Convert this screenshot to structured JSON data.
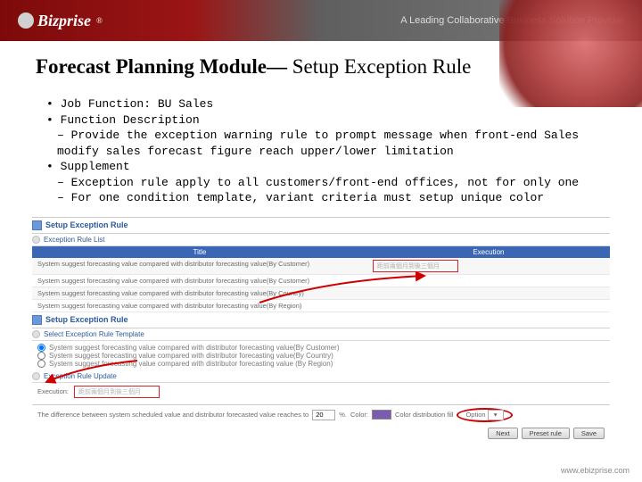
{
  "banner": {
    "logo_text": "Bizprise",
    "reg_mark": "®",
    "tagline": "A Leading Collaborative Business Solution Provider"
  },
  "title": {
    "bold": "Forecast Planning Module—",
    "rest": " Setup Exception Rule"
  },
  "bullets": {
    "b1": "Job Function: BU Sales",
    "b2": "Function Description",
    "b2_1": "Provide the exception warning rule to prompt message when front-end Sales modify sales forecast figure reach upper/lower limitation",
    "b3": "Supplement",
    "b3_1": "Exception rule apply to all customers/front-end offices, not for only one",
    "b3_2": "For one condition template, variant criteria must setup unique color"
  },
  "shot": {
    "hdr1": "Setup Exception Rule",
    "sub1": "Exception Rule List",
    "th_title": "Title",
    "th_exec": "Execution",
    "rows": [
      {
        "title": "System suggest forecasting value compared with distributor forecasting value(By Customer)",
        "exec": "距前兩個月到後三個月"
      },
      {
        "title": "System suggest forecasting value compared with distributor forecasting value(By Customer)",
        "exec": ""
      },
      {
        "title": "System suggest forecasting value compared with distributor forecasting value(By Country)",
        "exec": ""
      },
      {
        "title": "System suggest forecasting value compared with distributor forecasting value(By Region)",
        "exec": ""
      }
    ],
    "hdr2": "Setup Exception Rule",
    "sub2": "Select Exception Rule Template",
    "radios": [
      "System suggest forecasting value compared with distributor forecasting value(By Customer)",
      "System suggest forecasting value compared with distributor forecasting value(By Country)",
      "System suggest forecasting value compared with distributor forecasting value (By Region)"
    ],
    "sub3": "Exception Rule Update",
    "exec_label": "Execution:",
    "exec_value": "距前兩個月到後三個月",
    "diff_text": "The difference between system scheduled value and distributor forecasted value reaches to",
    "diff_value": "20",
    "pct": "%.",
    "color_label": "Color:",
    "color_hex": "#7b5ab2",
    "color_distribution": "Color distribution fill",
    "option_label": "Option",
    "option_select": "▾",
    "btn_next": "Next",
    "btn_preset": "Preset rule",
    "btn_save": "Save"
  },
  "footer": {
    "url": "www.ebizprise.com"
  }
}
